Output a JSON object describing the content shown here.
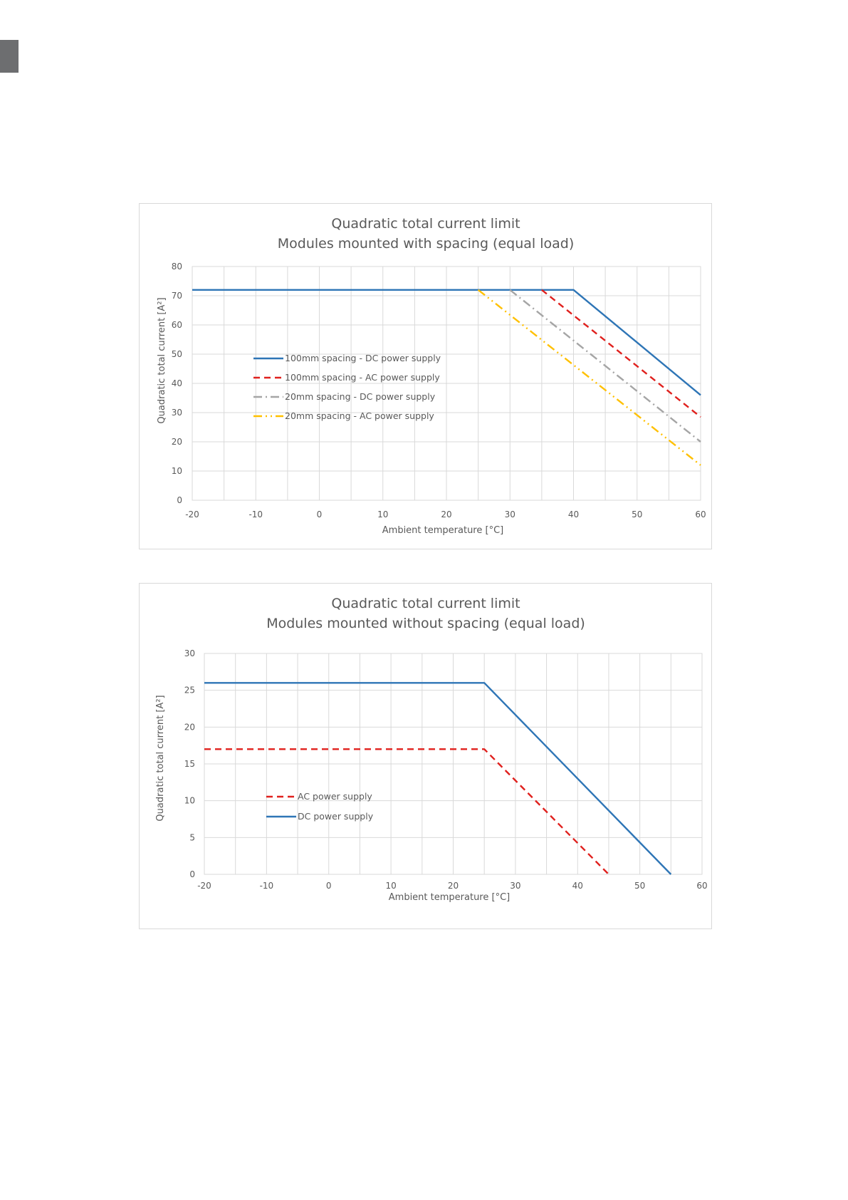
{
  "page": {
    "corner_tab_color": "#6d6e70"
  },
  "chart_data": [
    {
      "type": "line",
      "title": "Quadratic total current limit",
      "subtitle": "Modules mounted with spacing (equal load)",
      "xlabel": "Ambient temperature [°C]",
      "ylabel": "Quadratic total current [A²]",
      "xlim": [
        -20,
        60
      ],
      "ylim": [
        0,
        80
      ],
      "xticks": [
        -20,
        -10,
        0,
        10,
        20,
        30,
        40,
        50,
        60
      ],
      "yticks": [
        0,
        10,
        20,
        30,
        40,
        50,
        60,
        70,
        80
      ],
      "grid": true,
      "legend_position": "center-left",
      "series": [
        {
          "name": "100mm spacing - DC power supply",
          "color": "#2e75b6",
          "style": "solid",
          "x": [
            -20,
            40,
            60
          ],
          "y": [
            72,
            72,
            36
          ]
        },
        {
          "name": "100mm spacing - AC power supply",
          "color": "#e0201d",
          "style": "dashed",
          "x": [
            35,
            60
          ],
          "y": [
            72,
            28.5
          ]
        },
        {
          "name": "20mm spacing - DC power supply",
          "color": "#a5a5a5",
          "style": "dashdot",
          "x": [
            30,
            60
          ],
          "y": [
            72,
            20
          ]
        },
        {
          "name": "20mm spacing - AC power supply",
          "color": "#ffc000",
          "style": "dashdotdot",
          "x": [
            25,
            60
          ],
          "y": [
            72,
            12
          ]
        }
      ]
    },
    {
      "type": "line",
      "title": "Quadratic total current limit",
      "subtitle": "Modules mounted without spacing (equal load)",
      "xlabel": "Ambient temperature [°C]",
      "ylabel": "Quadratic total current [A²]",
      "xlim": [
        -20,
        60
      ],
      "ylim": [
        0,
        30
      ],
      "xticks": [
        -20,
        -10,
        0,
        10,
        20,
        30,
        40,
        50,
        60
      ],
      "yticks": [
        0,
        5,
        10,
        15,
        20,
        25,
        30
      ],
      "grid": true,
      "legend_position": "center-left",
      "series": [
        {
          "name": "AC power supply",
          "color": "#e0201d",
          "style": "dashed",
          "x": [
            -20,
            25,
            45
          ],
          "y": [
            17,
            17,
            0
          ]
        },
        {
          "name": "DC power supply",
          "color": "#2e75b6",
          "style": "solid",
          "x": [
            -20,
            25,
            55
          ],
          "y": [
            26,
            26,
            0
          ]
        }
      ]
    }
  ]
}
